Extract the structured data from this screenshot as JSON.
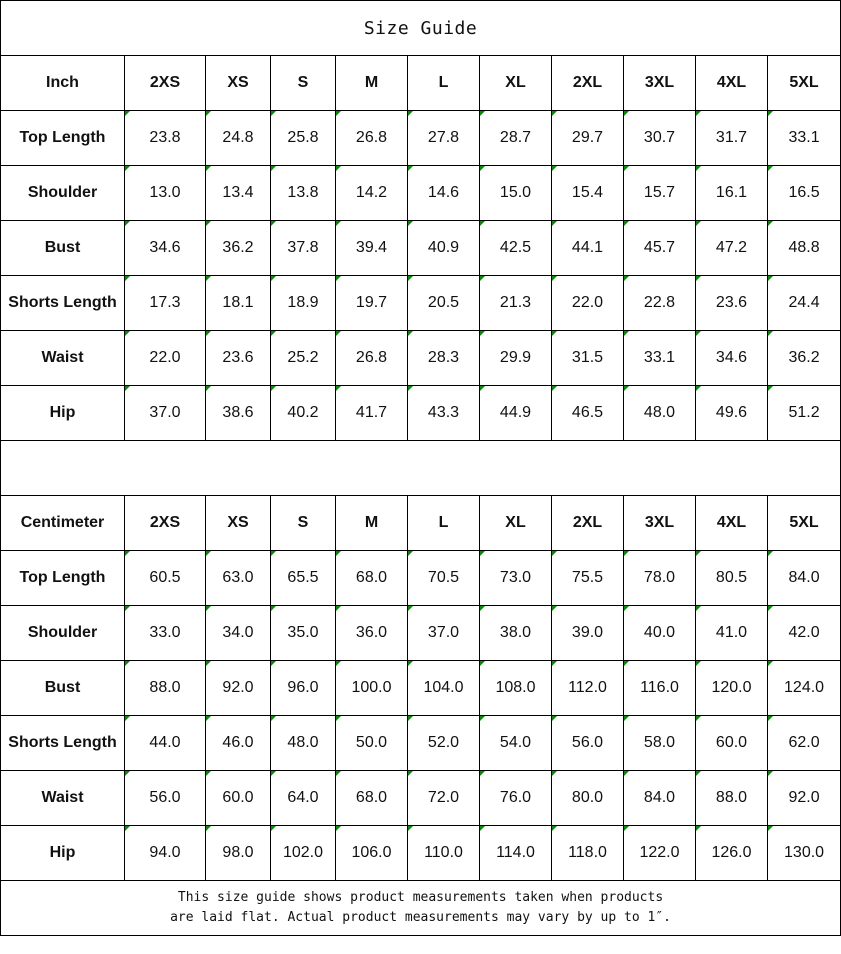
{
  "title": "Size Guide",
  "sizes": [
    "2XS",
    "XS",
    "S",
    "M",
    "L",
    "XL",
    "2XL",
    "3XL",
    "4XL",
    "5XL"
  ],
  "tables": [
    {
      "unit": "Inch",
      "rows": [
        {
          "label": "Top Length",
          "values": [
            "23.8",
            "24.8",
            "25.8",
            "26.8",
            "27.8",
            "28.7",
            "29.7",
            "30.7",
            "31.7",
            "33.1"
          ]
        },
        {
          "label": "Shoulder",
          "values": [
            "13.0",
            "13.4",
            "13.8",
            "14.2",
            "14.6",
            "15.0",
            "15.4",
            "15.7",
            "16.1",
            "16.5"
          ]
        },
        {
          "label": "Bust",
          "values": [
            "34.6",
            "36.2",
            "37.8",
            "39.4",
            "40.9",
            "42.5",
            "44.1",
            "45.7",
            "47.2",
            "48.8"
          ]
        },
        {
          "label": "Shorts Length",
          "values": [
            "17.3",
            "18.1",
            "18.9",
            "19.7",
            "20.5",
            "21.3",
            "22.0",
            "22.8",
            "23.6",
            "24.4"
          ]
        },
        {
          "label": "Waist",
          "values": [
            "22.0",
            "23.6",
            "25.2",
            "26.8",
            "28.3",
            "29.9",
            "31.5",
            "33.1",
            "34.6",
            "36.2"
          ]
        },
        {
          "label": "Hip",
          "values": [
            "37.0",
            "38.6",
            "40.2",
            "41.7",
            "43.3",
            "44.9",
            "46.5",
            "48.0",
            "49.6",
            "51.2"
          ]
        }
      ]
    },
    {
      "unit": "Centimeter",
      "rows": [
        {
          "label": "Top Length",
          "values": [
            "60.5",
            "63.0",
            "65.5",
            "68.0",
            "70.5",
            "73.0",
            "75.5",
            "78.0",
            "80.5",
            "84.0"
          ]
        },
        {
          "label": "Shoulder",
          "values": [
            "33.0",
            "34.0",
            "35.0",
            "36.0",
            "37.0",
            "38.0",
            "39.0",
            "40.0",
            "41.0",
            "42.0"
          ]
        },
        {
          "label": "Bust",
          "values": [
            "88.0",
            "92.0",
            "96.0",
            "100.0",
            "104.0",
            "108.0",
            "112.0",
            "116.0",
            "120.0",
            "124.0"
          ]
        },
        {
          "label": "Shorts Length",
          "values": [
            "44.0",
            "46.0",
            "48.0",
            "50.0",
            "52.0",
            "54.0",
            "56.0",
            "58.0",
            "60.0",
            "62.0"
          ]
        },
        {
          "label": "Waist",
          "values": [
            "56.0",
            "60.0",
            "64.0",
            "68.0",
            "72.0",
            "76.0",
            "80.0",
            "84.0",
            "88.0",
            "92.0"
          ]
        },
        {
          "label": "Hip",
          "values": [
            "94.0",
            "98.0",
            "102.0",
            "106.0",
            "110.0",
            "114.0",
            "118.0",
            "122.0",
            "126.0",
            "130.0"
          ]
        }
      ]
    }
  ],
  "note_line1": "This size guide shows product measurements taken when products",
  "note_line2": "are laid flat. Actual product measurements may vary by up to 1″.",
  "colors": {
    "cell_marker": "#0a8a0a",
    "border": "#000000"
  }
}
